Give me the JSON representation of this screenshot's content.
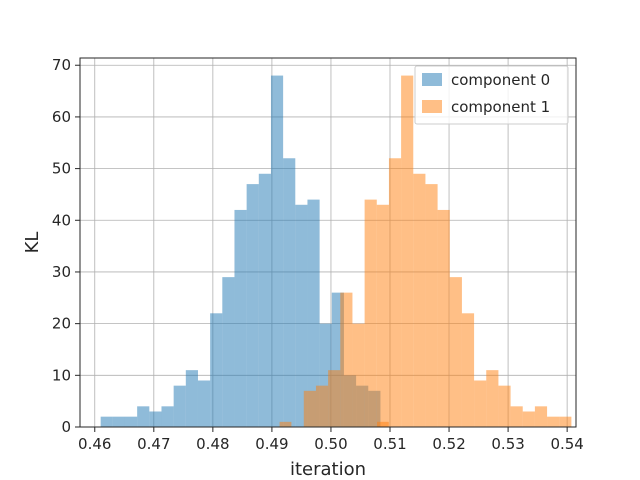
{
  "chart_data": {
    "type": "histogram",
    "xlabel": "iteration",
    "ylabel": "KL",
    "xlim": [
      0.4575,
      0.5415
    ],
    "ylim": [
      0,
      71.4
    ],
    "xticks": [
      0.46,
      0.47,
      0.48,
      0.49,
      0.5,
      0.51,
      0.52,
      0.53,
      0.54
    ],
    "yticks": [
      0,
      10,
      20,
      30,
      40,
      50,
      60,
      70
    ],
    "grid": true,
    "legend_position": "top-right",
    "series": [
      {
        "name": "component 0",
        "color": "#1f77b4",
        "opacity": 0.5,
        "bin_start": 0.461,
        "bin_width": 0.00206,
        "counts": [
          2,
          2,
          2,
          4,
          3,
          4,
          8,
          11,
          9,
          22,
          29,
          42,
          47,
          49,
          68,
          52,
          43,
          44,
          20,
          26,
          10,
          8,
          7
        ]
      },
      {
        "name": "component 1",
        "color": "#ff7f0e",
        "opacity": 0.5,
        "bin_start": 0.4954,
        "bin_width": 0.00206,
        "counts": [
          7,
          8,
          11,
          26,
          20,
          44,
          43,
          52,
          68,
          49,
          47,
          42,
          29,
          22,
          9,
          11,
          8,
          4,
          3,
          4,
          2,
          2
        ]
      }
    ],
    "extra_bars": [
      {
        "series": 1,
        "x0": 0.4913,
        "x1": 0.4933,
        "count": 1
      },
      {
        "series": 1,
        "x0": 0.5078,
        "x1": 0.5098,
        "count": 1
      }
    ]
  }
}
